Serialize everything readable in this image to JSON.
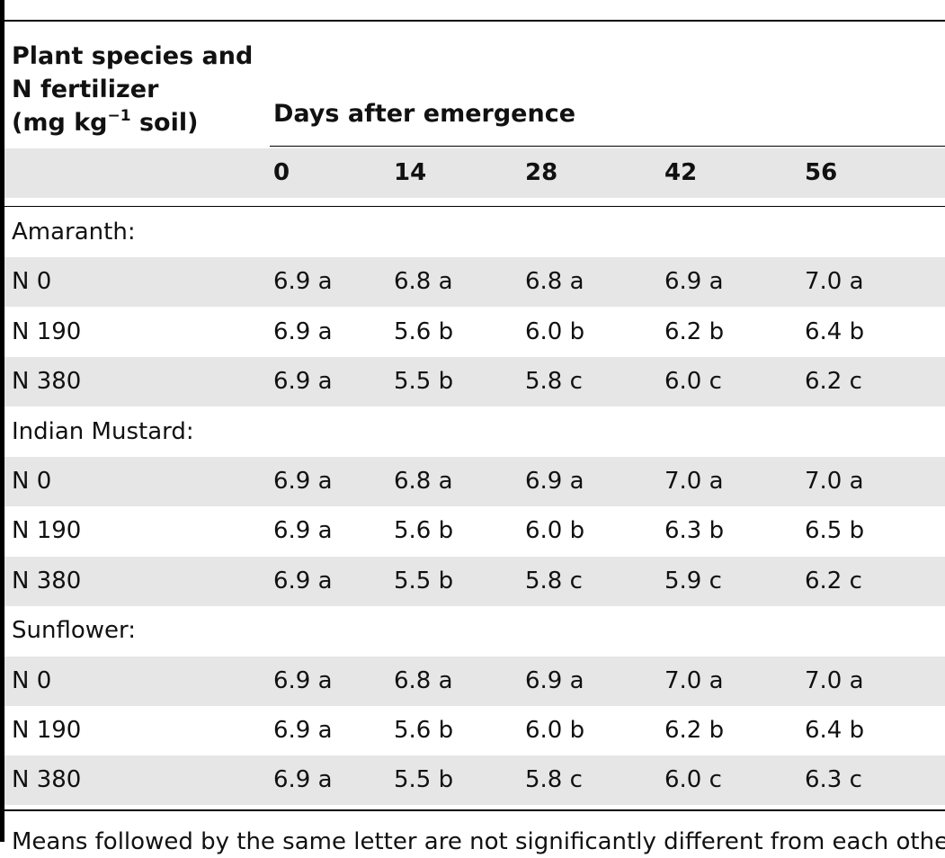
{
  "table": {
    "stub_header": [
      "Plant species and",
      "N fertilizer",
      "(mg kg",
      "−1",
      " soil)"
    ],
    "spanner_header": "Days after emergence",
    "days": [
      "0",
      "14",
      "28",
      "42",
      "56"
    ],
    "groups": [
      {
        "label": "Amaranth:",
        "rows": [
          {
            "label": "N 0",
            "values": [
              "6.9 a",
              "6.8 a",
              "6.8 a",
              "6.9 a",
              "7.0 a"
            ]
          },
          {
            "label": "N 190",
            "values": [
              "6.9 a",
              "5.6 b",
              "6.0 b",
              "6.2 b",
              "6.4 b"
            ]
          },
          {
            "label": "N 380",
            "values": [
              "6.9 a",
              "5.5 b",
              "5.8 c",
              "6.0 c",
              "6.2 c"
            ]
          }
        ]
      },
      {
        "label": "Indian Mustard:",
        "rows": [
          {
            "label": "N 0",
            "values": [
              "6.9 a",
              "6.8 a",
              "6.9 a",
              "7.0 a",
              "7.0 a"
            ]
          },
          {
            "label": "N 190",
            "values": [
              "6.9 a",
              "5.6 b",
              "6.0 b",
              "6.3 b",
              "6.5 b"
            ]
          },
          {
            "label": "N 380",
            "values": [
              "6.9 a",
              "5.5 b",
              "5.8 c",
              "5.9 c",
              "6.2 c"
            ]
          }
        ]
      },
      {
        "label": "Sunflower:",
        "rows": [
          {
            "label": "N 0",
            "values": [
              "6.9 a",
              "6.8 a",
              "6.9 a",
              "7.0 a",
              "7.0 a"
            ]
          },
          {
            "label": "N 190",
            "values": [
              "6.9 a",
              "5.6 b",
              "6.0 b",
              "6.2 b",
              "6.4 b"
            ]
          },
          {
            "label": "N 380",
            "values": [
              "6.9 a",
              "5.5 b",
              "5.8 c",
              "6.0 c",
              "6.3 c"
            ]
          }
        ]
      }
    ],
    "footnote": "Means followed by the same letter are not significantly different from each other."
  }
}
